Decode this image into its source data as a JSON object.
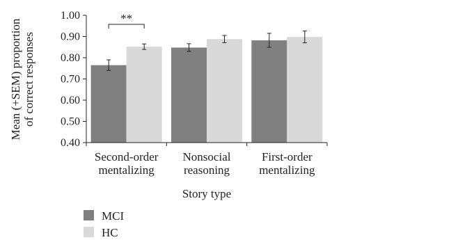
{
  "chart_data": {
    "type": "bar",
    "categories": [
      [
        "Second-order",
        "mentalizing"
      ],
      [
        "Nonsocial",
        "reasoning"
      ],
      [
        "First-order",
        "mentalizing"
      ]
    ],
    "series": [
      {
        "name": "MCI",
        "color": "#808080",
        "values": [
          0.765,
          0.848,
          0.882
        ],
        "sem": [
          0.025,
          0.018,
          0.033
        ]
      },
      {
        "name": "HC",
        "color": "#d9d9d9",
        "values": [
          0.852,
          0.888,
          0.898
        ],
        "sem": [
          0.013,
          0.017,
          0.028
        ]
      }
    ],
    "ylabel": [
      "Mean (+SEM) proportion",
      "of correct responses"
    ],
    "xlabel": "Story type",
    "ylim": [
      0.4,
      1.0
    ],
    "yticks": [
      "0.40",
      "0.50",
      "0.60",
      "0.70",
      "0.80",
      "0.90",
      "1.00"
    ],
    "annotations": [
      {
        "text": "**",
        "category_index": 0
      }
    ],
    "legend_position": "bottom-left",
    "grid": false
  }
}
